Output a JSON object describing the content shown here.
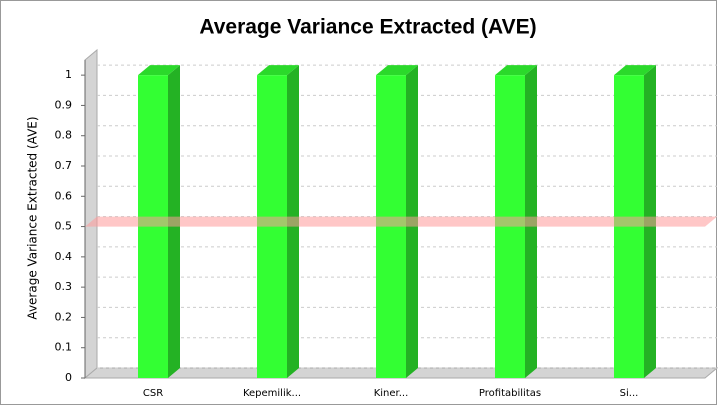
{
  "chart_data": {
    "type": "bar3d",
    "title": "Average Variance Extracted (AVE)",
    "y_label": "Average Variance Extracted (AVE)",
    "categories": [
      "CSR",
      "Kepemilik...",
      "Kiner...",
      "Profitabilitas",
      "Si..."
    ],
    "values": [
      1,
      1,
      1,
      1,
      1
    ],
    "color": "#33ff33",
    "ylim": [
      0,
      1.05
    ],
    "yticks": [
      0,
      0.1,
      0.2,
      0.3,
      0.4,
      0.5,
      0.6,
      0.7,
      0.8,
      0.9,
      1
    ],
    "grid": true,
    "threshold": 0.5,
    "threshold_color": "#ff9999"
  }
}
